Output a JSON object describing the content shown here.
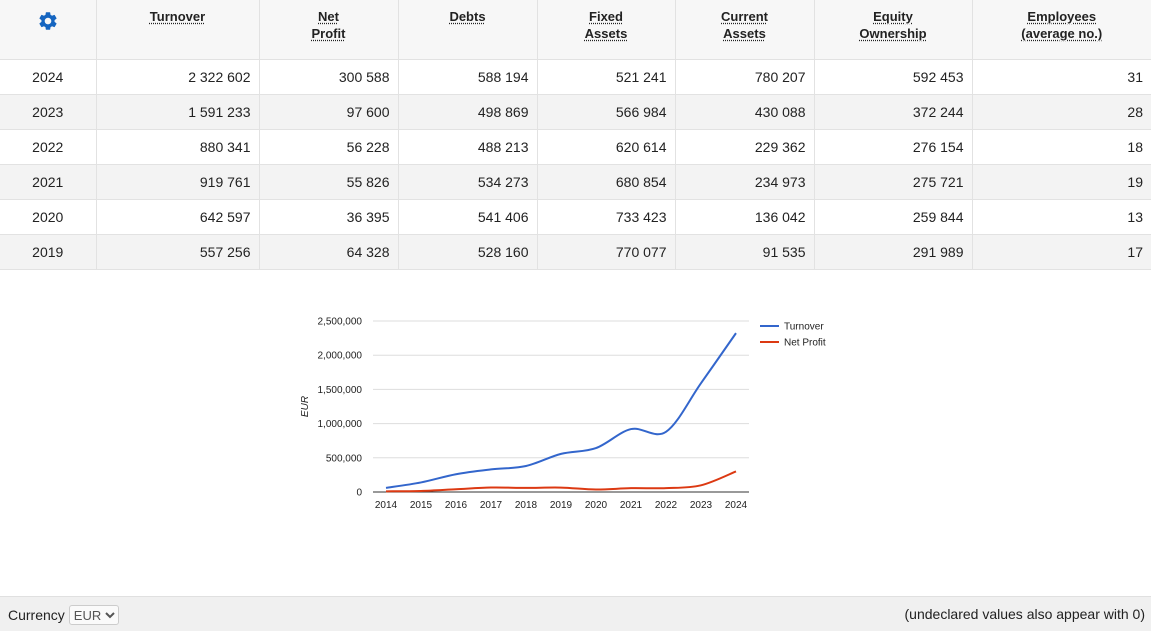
{
  "table": {
    "headers": [
      [
        "Turnover"
      ],
      [
        "Net",
        "Profit"
      ],
      [
        "Debts"
      ],
      [
        "Fixed",
        "Assets"
      ],
      [
        "Current",
        "Assets"
      ],
      [
        "Equity",
        "Ownership"
      ],
      [
        "Employees",
        "(average no.)"
      ]
    ],
    "rows": [
      {
        "year": "2024",
        "values": [
          "2 322 602",
          "300 588",
          "588 194",
          "521 241",
          "780 207",
          "592 453",
          "31"
        ]
      },
      {
        "year": "2023",
        "values": [
          "1 591 233",
          "97 600",
          "498 869",
          "566 984",
          "430 088",
          "372 244",
          "28"
        ]
      },
      {
        "year": "2022",
        "values": [
          "880 341",
          "56 228",
          "488 213",
          "620 614",
          "229 362",
          "276 154",
          "18"
        ]
      },
      {
        "year": "2021",
        "values": [
          "919 761",
          "55 826",
          "534 273",
          "680 854",
          "234 973",
          "275 721",
          "19"
        ]
      },
      {
        "year": "2020",
        "values": [
          "642 597",
          "36 395",
          "541 406",
          "733 423",
          "136 042",
          "259 844",
          "13"
        ]
      },
      {
        "year": "2019",
        "values": [
          "557 256",
          "64 328",
          "528 160",
          "770 077",
          "91 535",
          "291 989",
          "17"
        ]
      }
    ]
  },
  "icons": {
    "settings": "gear-icon",
    "gear_color": "#1565c0"
  },
  "chart_data": {
    "type": "line",
    "x": [
      "2014",
      "2015",
      "2016",
      "2017",
      "2018",
      "2019",
      "2020",
      "2021",
      "2022",
      "2023",
      "2024"
    ],
    "series": [
      {
        "name": "Turnover",
        "color": "#3366cc",
        "values": [
          60000,
          140000,
          260000,
          330000,
          380000,
          557256,
          642597,
          919761,
          880341,
          1591233,
          2322602
        ]
      },
      {
        "name": "Net Profit",
        "color": "#dc3912",
        "values": [
          10000,
          15000,
          40000,
          65000,
          60000,
          64328,
          36395,
          55826,
          56228,
          97600,
          300588
        ]
      }
    ],
    "ylabel": "EUR",
    "xlabel": "",
    "ylim": [
      0,
      2500000
    ],
    "yticks": [
      "0",
      "500,000",
      "1,000,000",
      "1,500,000",
      "2,000,000",
      "2,500,000"
    ],
    "grid": true,
    "legend": "right"
  },
  "footer": {
    "currency_label": "Currency",
    "currency_value": "EUR",
    "note": "(undeclared values also appear with 0)"
  }
}
